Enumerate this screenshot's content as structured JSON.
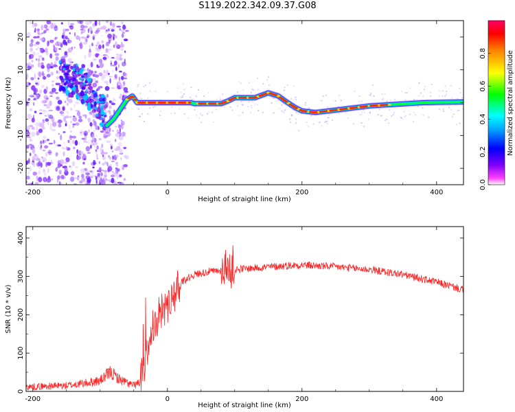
{
  "title": "S119.2022.342.09.37.G08",
  "chart_data": [
    {
      "type": "heatmap",
      "xlabel": "Height of straight line (km)",
      "ylabel": "Frequency (Hz)",
      "xlim": [
        -210,
        440
      ],
      "ylim": [
        -25,
        25
      ],
      "x_ticks": [
        -200,
        0,
        200,
        400
      ],
      "y_ticks": [
        -20,
        -10,
        0,
        10,
        20
      ],
      "colorbar": {
        "label": "Normalized spectral amplitude",
        "range": [
          0,
          1
        ],
        "ticks": [
          "0.0",
          "0.2",
          "0.4",
          "0.6",
          "0.8"
        ],
        "colors": [
          "#ffffff",
          "#ff00ff",
          "#0000ff",
          "#00ffff",
          "#00ff00",
          "#ffff00",
          "#ff0000",
          "#ff00aa"
        ]
      },
      "ridge": {
        "x": [
          -90,
          -80,
          -70,
          -60,
          -52,
          -45,
          -40,
          -30,
          0,
          20,
          35,
          40,
          60,
          80,
          90,
          100,
          130,
          150,
          165,
          175,
          190,
          200,
          220,
          240,
          260,
          280,
          300,
          340,
          380,
          440
        ],
        "y": [
          -7,
          -5,
          -2,
          1,
          2,
          0,
          0,
          0,
          0,
          0,
          0,
          -0.3,
          -0.3,
          -0.3,
          0.5,
          1.5,
          1.5,
          3,
          2,
          0.5,
          -1.5,
          -2.5,
          -3,
          -2.5,
          -2,
          -1.5,
          -1,
          -0.5,
          0,
          0.2
        ]
      },
      "noise_region": {
        "x": [
          -210,
          -80
        ],
        "y_spread": 25
      }
    },
    {
      "type": "line",
      "xlabel": "Height of straight line (km)",
      "ylabel": "SNR (10 * v/v)",
      "xlim": [
        -210,
        440
      ],
      "ylim": [
        0,
        430
      ],
      "x_ticks": [
        -200,
        0,
        200,
        400
      ],
      "y_ticks": [
        0,
        100,
        200,
        300,
        400
      ],
      "color": "#ff2020",
      "trend": {
        "x": [
          -210,
          -150,
          -120,
          -100,
          -85,
          -70,
          -50,
          -40,
          -30,
          -25,
          -15,
          0,
          20,
          40,
          60,
          100,
          150,
          200,
          250,
          300,
          350,
          400,
          440
        ],
        "y": [
          12,
          15,
          22,
          28,
          50,
          30,
          15,
          25,
          100,
          160,
          190,
          230,
          285,
          305,
          312,
          318,
          325,
          330,
          325,
          318,
          305,
          285,
          265
        ]
      }
    }
  ]
}
